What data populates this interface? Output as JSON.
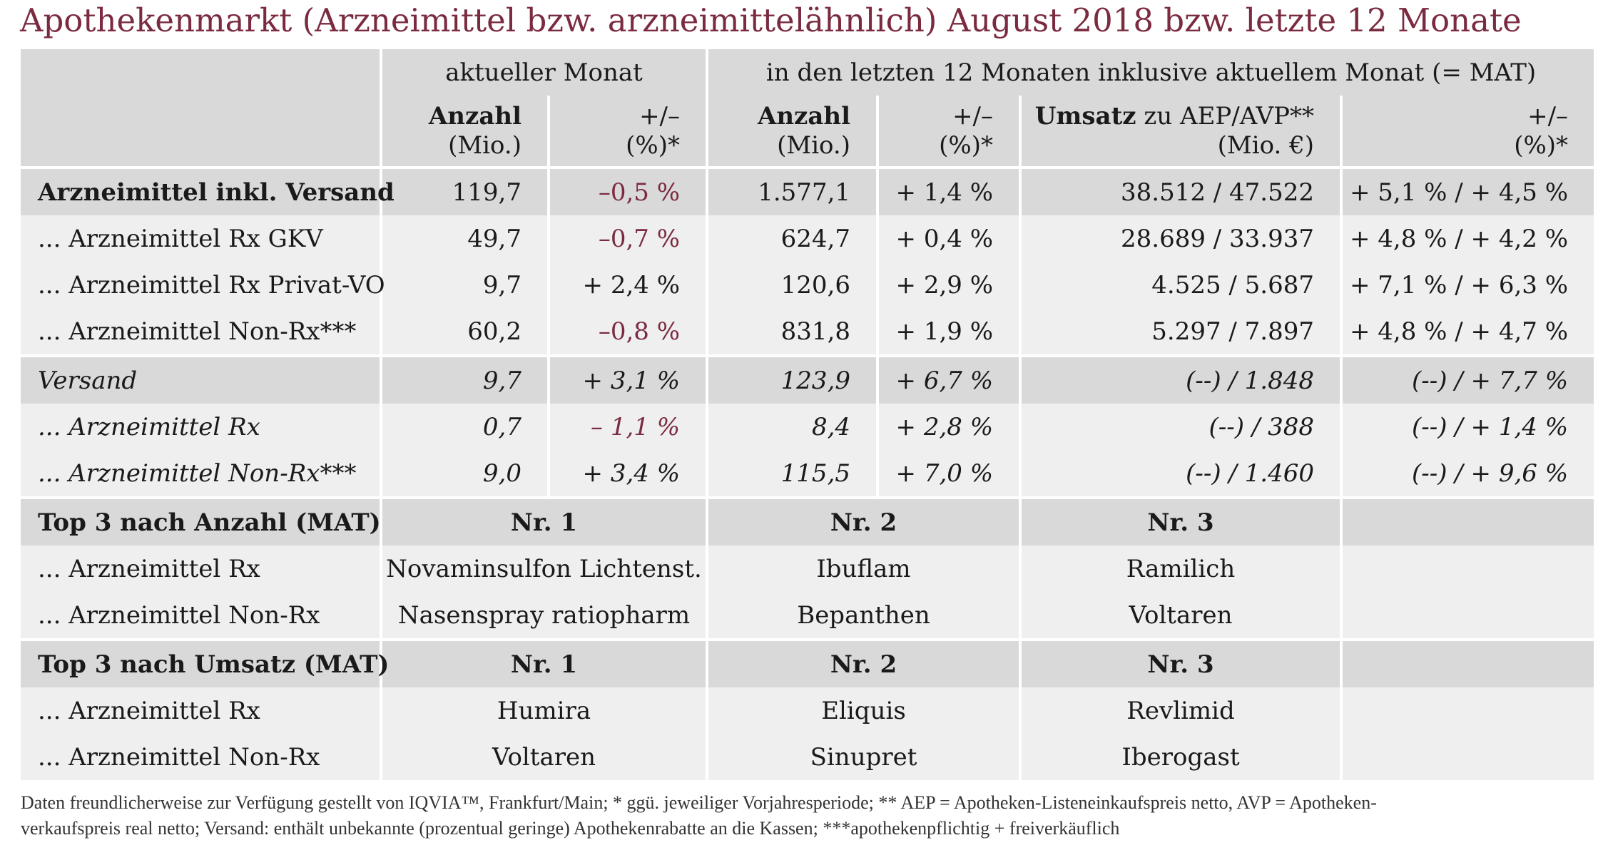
{
  "title": "Apothekenmarkt (Arzneimittel bzw. arzneimittelähnlich) August 2018 bzw. letzte 12 Monate",
  "header": {
    "group_current": "aktueller Monat",
    "group_mat": "in den letzten 12 Monaten inklusive aktuellem Monat (= MAT)",
    "anzahl": "Anzahl",
    "mio": "(Mio.)",
    "plusminus": "+/–",
    "pct_star": "(%)*",
    "umsatz": "Umsatz",
    "umsatz_rest": " zu AEP/AVP**",
    "mio_eur": "(Mio. €)"
  },
  "rows": [
    {
      "label": "Arzneimittel inkl. Versand",
      "cur_count": "119,7",
      "cur_change": "–0,5 %",
      "mat_count": "1.577,1",
      "mat_change": "+ 1,4 %",
      "revenue": "38.512 / 47.522",
      "rev_change": "+ 5,1 % / + 4,5 %"
    },
    {
      "label": "... Arzneimittel Rx GKV",
      "cur_count": "49,7",
      "cur_change": "–0,7 %",
      "mat_count": "624,7",
      "mat_change": "+ 0,4 %",
      "revenue": "28.689 / 33.937",
      "rev_change": "+ 4,8 % / + 4,2 %"
    },
    {
      "label": "... Arzneimittel Rx Privat-VO",
      "cur_count": "9,7",
      "cur_change": "+ 2,4 %",
      "mat_count": "120,6",
      "mat_change": "+ 2,9 %",
      "revenue": "4.525 / 5.687",
      "rev_change": "+ 7,1 % / + 6,3 %"
    },
    {
      "label": "... Arzneimittel Non-Rx***",
      "cur_count": "60,2",
      "cur_change": "–0,8 %",
      "mat_count": "831,8",
      "mat_change": "+ 1,9 %",
      "revenue": "5.297 / 7.897",
      "rev_change": "+ 4,8 % / + 4,7 %"
    },
    {
      "label": "Versand",
      "cur_count": "9,7",
      "cur_change": "+ 3,1 %",
      "mat_count": "123,9",
      "mat_change": "+ 6,7 %",
      "revenue": "(--) / 1.848",
      "rev_change": "(--) / + 7,7 %"
    },
    {
      "label": "... Arzneimittel Rx",
      "cur_count": "0,7",
      "cur_change": "– 1,1 %",
      "mat_count": "8,4",
      "mat_change": "+ 2,8 %",
      "revenue": "(--) / 388",
      "rev_change": "(--) / + 1,4 %"
    },
    {
      "label": "... Arzneimittel Non-Rx***",
      "cur_count": "9,0",
      "cur_change": "+ 3,4 %",
      "mat_count": "115,5",
      "mat_change": "+ 7,0 %",
      "revenue": "(--) / 1.460",
      "rev_change": "(--) / + 9,6 %"
    }
  ],
  "top_anzahl": {
    "heading": "Top 3 nach Anzahl (MAT)",
    "nr1": "Nr. 1",
    "nr2": "Nr. 2",
    "nr3": "Nr. 3",
    "rx": {
      "label": "... Arzneimittel Rx",
      "p1": "Novaminsulfon Lichtenst.",
      "p2": "Ibuflam",
      "p3": "Ramilich"
    },
    "nonrx": {
      "label": "... Arzneimittel Non-Rx",
      "p1": "Nasenspray ratiopharm",
      "p2": "Bepanthen",
      "p3": "Voltaren"
    }
  },
  "top_umsatz": {
    "heading": "Top 3 nach Umsatz (MAT)",
    "nr1": "Nr. 1",
    "nr2": "Nr. 2",
    "nr3": "Nr. 3",
    "rx": {
      "label": "... Arzneimittel Rx",
      "p1": "Humira",
      "p2": "Eliquis",
      "p3": "Revlimid"
    },
    "nonrx": {
      "label": "... Arzneimittel Non-Rx",
      "p1": "Voltaren",
      "p2": "Sinupret",
      "p3": "Iberogast"
    }
  },
  "footer": {
    "line1": "Daten freundlicherweise zur Verfügung gestellt von IQVIA™, Frankfurt/Main;   * ggü. jeweiliger Vorjahresperiode;   ** AEP = Apotheken-Listeneinkaufspreis netto, AVP = Apotheken-",
    "line2": "verkaufspreis real netto; Versand: enthält unbekannte (prozentual geringe) Apothekenrabatte an die Kassen;   ***apothekenpflichtig + freiverkäuflich"
  },
  "colors": {
    "accent": "#7b2b3f",
    "header_bg": "#d9d9d9",
    "row_light_bg": "#efefef"
  }
}
